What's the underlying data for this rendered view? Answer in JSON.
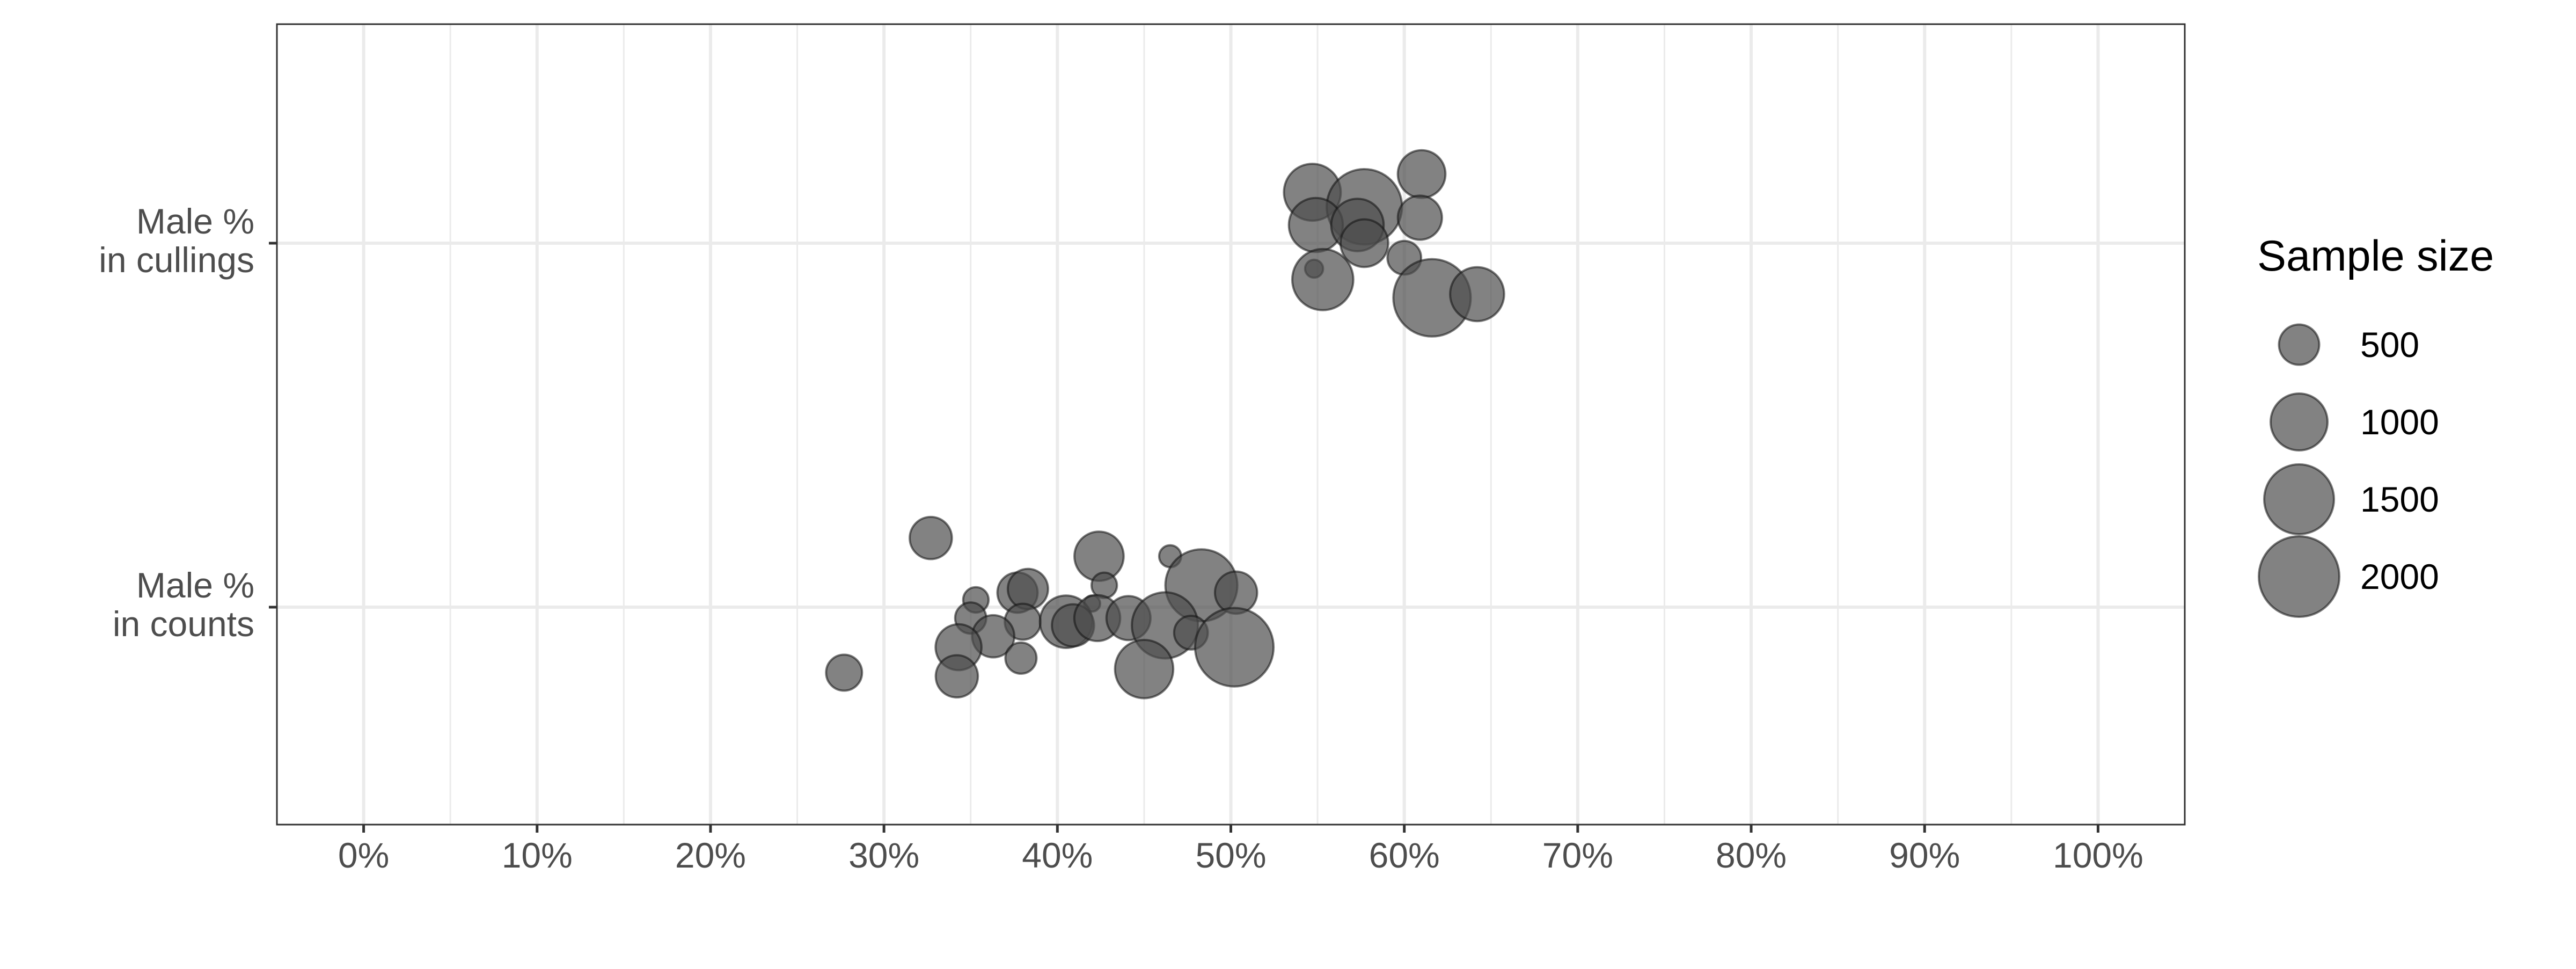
{
  "chart_data": {
    "type": "scatter",
    "subtype": "bubble",
    "title": "",
    "xlabel": "",
    "ylabel": "",
    "xlim": [
      -0.05,
      1.05
    ],
    "x_tick_values": [
      0,
      0.1,
      0.2,
      0.3,
      0.4,
      0.5,
      0.6,
      0.7,
      0.8,
      0.9,
      1.0
    ],
    "x_tick_labels": [
      "0%",
      "10%",
      "20%",
      "30%",
      "40%",
      "50%",
      "60%",
      "70%",
      "80%",
      "90%",
      "100%"
    ],
    "categories": [
      {
        "key": "counts",
        "label_lines": [
          "Male %",
          "in counts"
        ]
      },
      {
        "key": "cullings",
        "label_lines": [
          "Male %",
          "in cullings"
        ]
      }
    ],
    "grid": true,
    "point_color": "#4d4d4d",
    "point_opacity": 0.7,
    "legend": {
      "title": "Sample size",
      "position": "right",
      "items": [
        {
          "label": "500",
          "size": 500
        },
        {
          "label": "1000",
          "size": 1000
        },
        {
          "label": "1500",
          "size": 1500
        },
        {
          "label": "2000",
          "size": 2000
        }
      ]
    },
    "series": [
      {
        "category": "cullings",
        "points": [
          {
            "x": 0.547,
            "jitter": 0.14,
            "size": 1000
          },
          {
            "x": 0.577,
            "jitter": 0.1,
            "size": 1750
          },
          {
            "x": 0.61,
            "jitter": 0.19,
            "size": 700
          },
          {
            "x": 0.549,
            "jitter": 0.05,
            "size": 900
          },
          {
            "x": 0.573,
            "jitter": 0.05,
            "size": 850
          },
          {
            "x": 0.609,
            "jitter": 0.07,
            "size": 600
          },
          {
            "x": 0.577,
            "jitter": 0.0,
            "size": 700
          },
          {
            "x": 0.6,
            "jitter": -0.04,
            "size": 350
          },
          {
            "x": 0.548,
            "jitter": -0.07,
            "size": 100
          },
          {
            "x": 0.553,
            "jitter": -0.1,
            "size": 1150
          },
          {
            "x": 0.616,
            "jitter": -0.15,
            "size": 1850
          },
          {
            "x": 0.642,
            "jitter": -0.14,
            "size": 900
          }
        ]
      },
      {
        "category": "counts",
        "points": [
          {
            "x": 0.327,
            "jitter": 0.19,
            "size": 550
          },
          {
            "x": 0.424,
            "jitter": 0.14,
            "size": 750
          },
          {
            "x": 0.465,
            "jitter": 0.14,
            "size": 150
          },
          {
            "x": 0.483,
            "jitter": 0.06,
            "size": 1600
          },
          {
            "x": 0.377,
            "jitter": 0.04,
            "size": 500
          },
          {
            "x": 0.383,
            "jitter": 0.05,
            "size": 500
          },
          {
            "x": 0.427,
            "jitter": 0.06,
            "size": 200
          },
          {
            "x": 0.503,
            "jitter": 0.04,
            "size": 550
          },
          {
            "x": 0.353,
            "jitter": 0.02,
            "size": 200
          },
          {
            "x": 0.42,
            "jitter": 0.01,
            "size": 80
          },
          {
            "x": 0.35,
            "jitter": -0.03,
            "size": 300
          },
          {
            "x": 0.38,
            "jitter": -0.04,
            "size": 400
          },
          {
            "x": 0.363,
            "jitter": -0.08,
            "size": 550
          },
          {
            "x": 0.405,
            "jitter": -0.04,
            "size": 850
          },
          {
            "x": 0.409,
            "jitter": -0.05,
            "size": 550
          },
          {
            "x": 0.423,
            "jitter": -0.03,
            "size": 650
          },
          {
            "x": 0.441,
            "jitter": -0.03,
            "size": 600
          },
          {
            "x": 0.462,
            "jitter": -0.05,
            "size": 1350
          },
          {
            "x": 0.477,
            "jitter": -0.07,
            "size": 350
          },
          {
            "x": 0.343,
            "jitter": -0.11,
            "size": 650
          },
          {
            "x": 0.502,
            "jitter": -0.11,
            "size": 1900
          },
          {
            "x": 0.379,
            "jitter": -0.14,
            "size": 300
          },
          {
            "x": 0.277,
            "jitter": -0.18,
            "size": 400
          },
          {
            "x": 0.342,
            "jitter": -0.19,
            "size": 550
          },
          {
            "x": 0.45,
            "jitter": -0.17,
            "size": 1050
          }
        ]
      }
    ]
  }
}
